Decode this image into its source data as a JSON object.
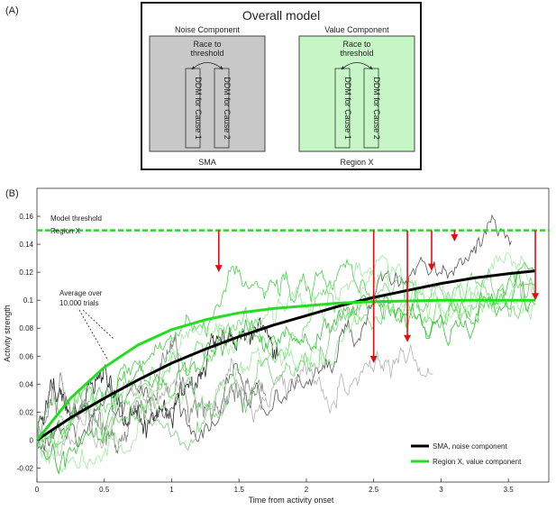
{
  "panel_a": {
    "label": "(A)",
    "title": "Overall model",
    "noise": {
      "heading": "Noise Component",
      "race_line1": "Race to",
      "race_line2": "threshold",
      "ddm1": "DDM for Cause 1",
      "ddm2": "DDM for Cause 2",
      "region": "SMA",
      "fill": "#c8c8c8"
    },
    "value": {
      "heading": "Value Component",
      "race_line1": "Race to",
      "race_line2": "threshold",
      "ddm1": "DDM for Cause 1",
      "ddm2": "DDM for Cause 2",
      "region": "Region X",
      "fill": "#c6f5c6"
    }
  },
  "panel_b": {
    "label": "(B)",
    "threshold_label_line1": "Model threshold",
    "threshold_label_line2": "Region X",
    "average_label_line1": "Average over",
    "average_label_line2": "10,000 trials"
  },
  "chart_data": {
    "type": "line",
    "xlabel": "Time from activity onset",
    "ylabel": "Activity strength",
    "xlim": [
      0,
      3.8
    ],
    "ylim": [
      -0.03,
      0.18
    ],
    "xticks": [
      0,
      0.5,
      1,
      1.5,
      2,
      2.5,
      3,
      3.5
    ],
    "xtick_labels": [
      "0",
      "0.5",
      "1",
      "1.5",
      "2",
      "2.5",
      "3",
      "3.5"
    ],
    "yticks": [
      -0.02,
      0,
      0.02,
      0.04,
      0.06,
      0.08,
      0.1,
      0.12,
      0.14,
      0.16
    ],
    "ytick_labels": [
      "-0.02",
      "0",
      "0.02",
      "0.04",
      "0.06",
      "0.08",
      "0.1",
      "0.12",
      "0.14",
      "0.16"
    ],
    "threshold": 0.15,
    "grid": false,
    "legend_position": "bottom-right",
    "series": [
      {
        "name": "SMA, noise component",
        "color": "#000000",
        "x": [
          0,
          0.25,
          0.5,
          0.75,
          1,
          1.25,
          1.5,
          1.75,
          2,
          2.25,
          2.5,
          2.75,
          3,
          3.25,
          3.5,
          3.7
        ],
        "y": [
          0,
          0.016,
          0.03,
          0.043,
          0.055,
          0.065,
          0.074,
          0.082,
          0.089,
          0.096,
          0.102,
          0.107,
          0.112,
          0.116,
          0.119,
          0.121
        ]
      },
      {
        "name": "Region X, value component",
        "color": "#22dd22",
        "x": [
          0,
          0.25,
          0.5,
          0.75,
          1,
          1.25,
          1.5,
          1.75,
          2,
          2.25,
          2.5,
          2.75,
          3,
          3.25,
          3.5,
          3.7
        ],
        "y": [
          0,
          0.03,
          0.052,
          0.068,
          0.079,
          0.086,
          0.091,
          0.094,
          0.096,
          0.098,
          0.099,
          0.0995,
          0.1,
          0.1,
          0.1,
          0.1
        ]
      }
    ],
    "trial_colors": [
      "#111111",
      "#444444",
      "#777777",
      "#aaaaaa",
      "#33cc33",
      "#55dd55",
      "#88ee88",
      "#22bb22",
      "#66cc66",
      "#99e699"
    ],
    "arrow_color": "#dd1111",
    "arrows": [
      {
        "x": 1.35,
        "y_from": 0.15,
        "y_to": 0.12
      },
      {
        "x": 2.5,
        "y_from": 0.15,
        "y_to": 0.055
      },
      {
        "x": 2.75,
        "y_from": 0.15,
        "y_to": 0.07
      },
      {
        "x": 2.93,
        "y_from": 0.15,
        "y_to": 0.121
      },
      {
        "x": 3.1,
        "y_from": 0.15,
        "y_to": 0.142
      },
      {
        "x": 3.7,
        "y_from": 0.15,
        "y_to": 0.1
      }
    ]
  }
}
